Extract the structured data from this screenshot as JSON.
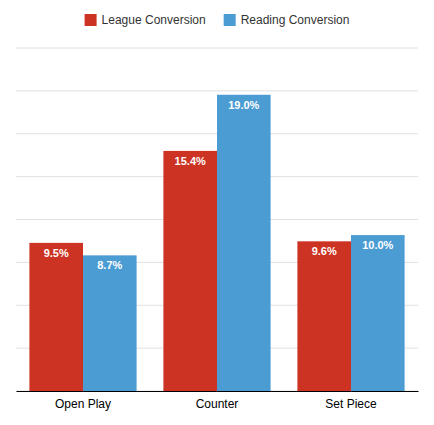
{
  "chart_data": {
    "type": "bar",
    "categories": [
      "Open Play",
      "Counter",
      "Set Piece"
    ],
    "series": [
      {
        "name": "League Conversion",
        "color": "#cc3322",
        "values": [
          9.5,
          15.4,
          9.6
        ],
        "value_labels": [
          "9.5%",
          "15.4%",
          "9.6%"
        ]
      },
      {
        "name": "Reading Conversion",
        "color": "#4b9cd3",
        "values": [
          8.7,
          19.0,
          10.0
        ],
        "value_labels": [
          "8.7%",
          "19.0%",
          "10.0%"
        ]
      }
    ],
    "ylim": [
      0,
      22
    ],
    "yticks": [
      0,
      2.75,
      5.5,
      8.25,
      11,
      13.75,
      16.5,
      19.25,
      22
    ],
    "grid": true,
    "tick_labels": "x",
    "legend": "upper center",
    "data_labels": true
  }
}
